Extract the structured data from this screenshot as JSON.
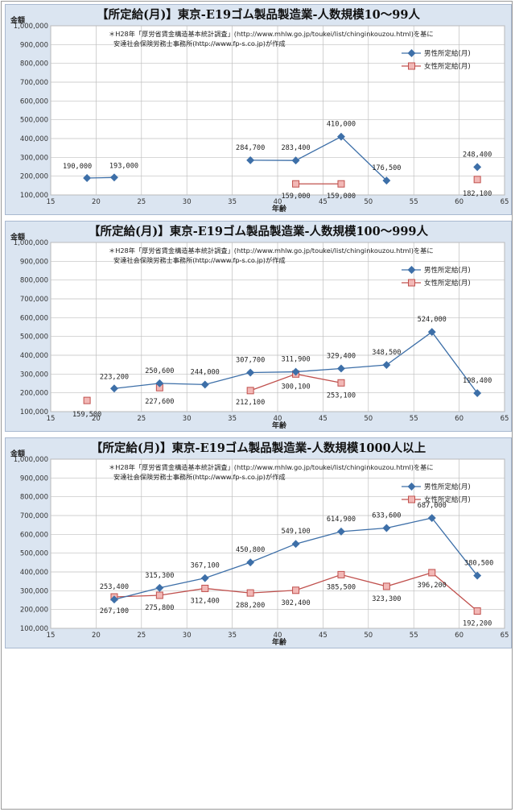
{
  "charts": [
    {
      "title": "【所定給(月)】東京-E19ゴム製品製造業-人数規模10～99人",
      "note_line1": "＊H28年「厚労省賃金構造基本統計調査」(http://www.mhlw.go.jp/toukei/list/chinginkouzou.html)を基に",
      "note_line2": "安達社会保険労務士事務所(http://www.fp-s.co.jp)が作成",
      "ylabel": "金額",
      "xlabel": "年齢",
      "legend_male": "男性所定給(月)",
      "legend_female": "女性所定給(月)"
    },
    {
      "title": "【所定給(月)】東京-E19ゴム製品製造業-人数規模100～999人",
      "note_line1": "＊H28年「厚労省賃金構造基本統計調査」(http://www.mhlw.go.jp/toukei/list/chinginkouzou.html)を基に",
      "note_line2": "安達社会保険労務士事務所(http://www.fp-s.co.jp)が作成",
      "ylabel": "金額",
      "xlabel": "年齢",
      "legend_male": "男性所定給(月)",
      "legend_female": "女性所定給(月)"
    },
    {
      "title": "【所定給(月)】東京-E19ゴム製品製造業-人数規模1000人以上",
      "note_line1": "＊H28年「厚労省賃金構造基本統計調査」(http://www.mhlw.go.jp/toukei/list/chinginkouzou.html)を基に",
      "note_line2": "安達社会保険労務士事務所(http://www.fp-s.co.jp)が作成",
      "ylabel": "金額",
      "xlabel": "年齢",
      "legend_male": "男性所定給(月)",
      "legend_female": "女性所定給(月)"
    }
  ],
  "colors": {
    "male": "#3d6fa8",
    "female": "#c0504d",
    "female_fill": "#f2b8b6",
    "grid": "#bfbfbf",
    "panel_bg": "#dbe5f1",
    "plot_bg": "#ffffff"
  },
  "chart_data": [
    {
      "type": "line",
      "xlim": [
        15,
        65
      ],
      "ylim": [
        100000,
        1000000
      ],
      "xticks": [
        15,
        20,
        25,
        30,
        35,
        40,
        45,
        50,
        55,
        60,
        65
      ],
      "yticks": [
        100000,
        200000,
        300000,
        400000,
        500000,
        600000,
        700000,
        800000,
        900000,
        1000000
      ],
      "ytick_labels": [
        "100,000",
        "200,000",
        "300,000",
        "400,000",
        "500,000",
        "600,000",
        "700,000",
        "800,000",
        "900,000",
        "1,000,000"
      ],
      "grid": true,
      "legend_position": "top-right",
      "series": [
        {
          "name": "男性所定給(月)",
          "segments": [
            [
              {
                "x": 19,
                "y": 190000,
                "label": "190,000"
              },
              {
                "x": 22,
                "y": 193000,
                "label": "193,000"
              }
            ],
            [
              {
                "x": 37,
                "y": 284700,
                "label": "284,700"
              },
              {
                "x": 42,
                "y": 283400,
                "label": "283,400"
              },
              {
                "x": 47,
                "y": 410000,
                "label": "410,000"
              },
              {
                "x": 52,
                "y": 176500,
                "label": "176,500"
              }
            ],
            [
              {
                "x": 62,
                "y": 248400,
                "label": "248,400"
              }
            ]
          ]
        },
        {
          "name": "女性所定給(月)",
          "segments": [
            [
              {
                "x": 42,
                "y": 159000,
                "label": "159,000"
              },
              {
                "x": 47,
                "y": 159000,
                "label": "159,000"
              }
            ],
            [
              {
                "x": 62,
                "y": 182100,
                "label": "182,100"
              }
            ]
          ]
        }
      ]
    },
    {
      "type": "line",
      "xlim": [
        15,
        65
      ],
      "ylim": [
        100000,
        1000000
      ],
      "xticks": [
        15,
        20,
        25,
        30,
        35,
        40,
        45,
        50,
        55,
        60,
        65
      ],
      "yticks": [
        100000,
        200000,
        300000,
        400000,
        500000,
        600000,
        700000,
        800000,
        900000,
        1000000
      ],
      "ytick_labels": [
        "100,000",
        "200,000",
        "300,000",
        "400,000",
        "500,000",
        "600,000",
        "700,000",
        "800,000",
        "900,000",
        "1,000,000"
      ],
      "grid": true,
      "legend_position": "top-right",
      "series": [
        {
          "name": "男性所定給(月)",
          "segments": [
            [
              {
                "x": 22,
                "y": 223200,
                "label": "223,200"
              },
              {
                "x": 27,
                "y": 250600,
                "label": "250,600"
              },
              {
                "x": 32,
                "y": 244000,
                "label": "244,000"
              },
              {
                "x": 37,
                "y": 307700,
                "label": "307,700"
              },
              {
                "x": 42,
                "y": 311900,
                "label": "311,900"
              },
              {
                "x": 47,
                "y": 329400,
                "label": "329,400"
              },
              {
                "x": 52,
                "y": 348500,
                "label": "348,500"
              },
              {
                "x": 57,
                "y": 524000,
                "label": "524,000"
              },
              {
                "x": 62,
                "y": 198400,
                "label": "198,400"
              }
            ]
          ]
        },
        {
          "name": "女性所定給(月)",
          "segments": [
            [
              {
                "x": 19,
                "y": 159500,
                "label": "159,500"
              }
            ],
            [
              {
                "x": 27,
                "y": 227600,
                "label": "227,600"
              }
            ],
            [
              {
                "x": 37,
                "y": 212100,
                "label": "212,100"
              },
              {
                "x": 42,
                "y": 300100,
                "label": "300,100"
              },
              {
                "x": 47,
                "y": 253100,
                "label": "253,100"
              }
            ]
          ]
        }
      ]
    },
    {
      "type": "line",
      "xlim": [
        15,
        65
      ],
      "ylim": [
        100000,
        1000000
      ],
      "xticks": [
        15,
        20,
        25,
        30,
        35,
        40,
        45,
        50,
        55,
        60,
        65
      ],
      "yticks": [
        100000,
        200000,
        300000,
        400000,
        500000,
        600000,
        700000,
        800000,
        900000,
        1000000
      ],
      "ytick_labels": [
        "100,000",
        "200,000",
        "300,000",
        "400,000",
        "500,000",
        "600,000",
        "700,000",
        "800,000",
        "900,000",
        "1,000,000"
      ],
      "grid": true,
      "legend_position": "top-right",
      "series": [
        {
          "name": "男性所定給(月)",
          "segments": [
            [
              {
                "x": 22,
                "y": 253400,
                "label": "253,400"
              },
              {
                "x": 27,
                "y": 315300,
                "label": "315,300"
              },
              {
                "x": 32,
                "y": 367100,
                "label": "367,100"
              },
              {
                "x": 37,
                "y": 450800,
                "label": "450,800"
              },
              {
                "x": 42,
                "y": 549100,
                "label": "549,100"
              },
              {
                "x": 47,
                "y": 614900,
                "label": "614,900"
              },
              {
                "x": 52,
                "y": 633600,
                "label": "633,600"
              },
              {
                "x": 57,
                "y": 687000,
                "label": "687,000"
              },
              {
                "x": 62,
                "y": 380500,
                "label": "380,500"
              }
            ]
          ]
        },
        {
          "name": "女性所定給(月)",
          "segments": [
            [
              {
                "x": 22,
                "y": 267100,
                "label": "267,100"
              },
              {
                "x": 27,
                "y": 275800,
                "label": "275,800"
              },
              {
                "x": 32,
                "y": 312400,
                "label": "312,400"
              },
              {
                "x": 37,
                "y": 288200,
                "label": "288,200"
              },
              {
                "x": 42,
                "y": 302400,
                "label": "302,400"
              },
              {
                "x": 47,
                "y": 385500,
                "label": "385,500"
              },
              {
                "x": 52,
                "y": 323300,
                "label": "323,300"
              },
              {
                "x": 57,
                "y": 396200,
                "label": "396,200"
              },
              {
                "x": 62,
                "y": 192200,
                "label": "192,200"
              }
            ]
          ]
        }
      ]
    }
  ]
}
